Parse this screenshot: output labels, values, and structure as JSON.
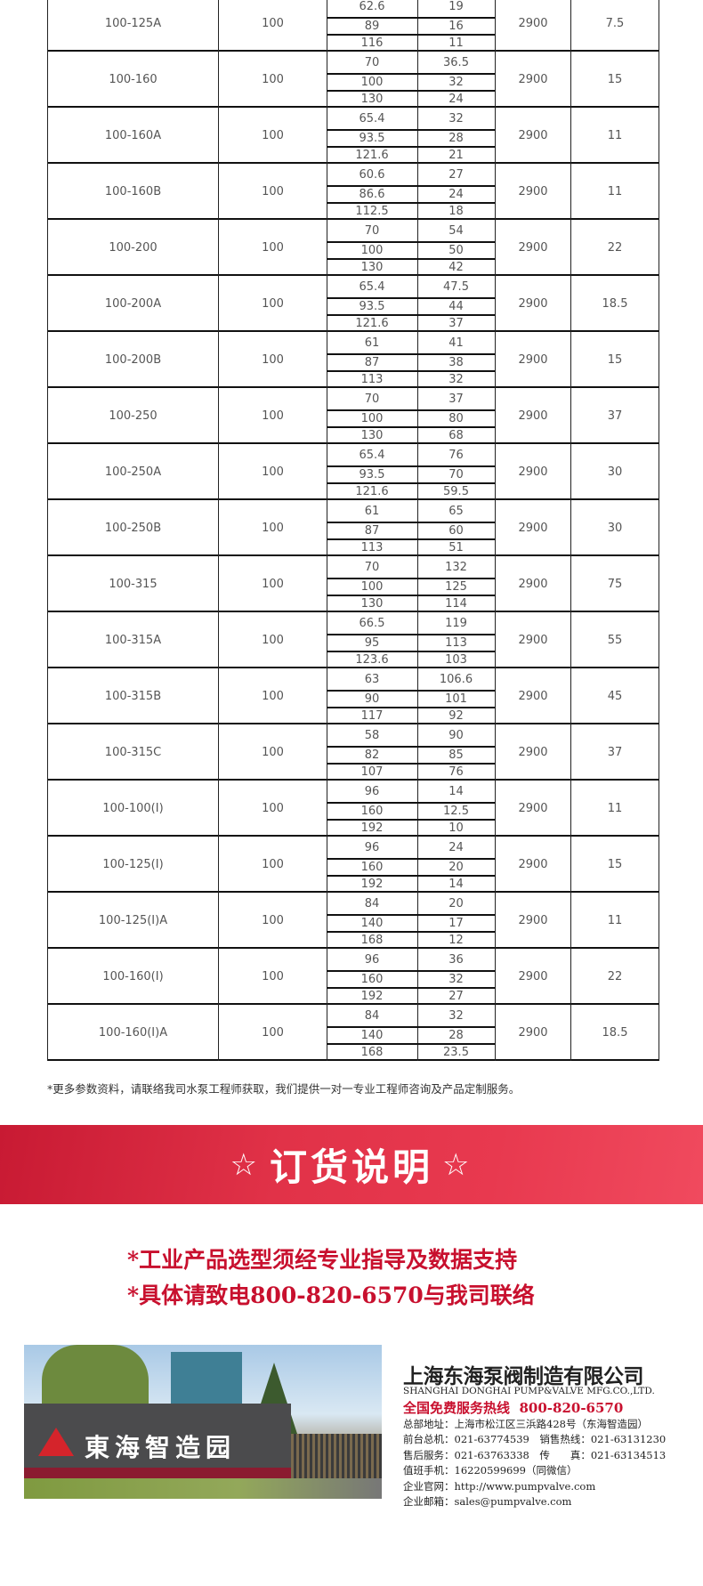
{
  "table": {
    "rows": [
      {
        "model": "100-125A",
        "inlet": "100",
        "flow": [
          "62.6",
          "89",
          "116"
        ],
        "head": [
          "19",
          "16",
          "11"
        ],
        "speed": "2900",
        "power": "7.5"
      },
      {
        "model": "100-160",
        "inlet": "100",
        "flow": [
          "70",
          "100",
          "130"
        ],
        "head": [
          "36.5",
          "32",
          "24"
        ],
        "speed": "2900",
        "power": "15"
      },
      {
        "model": "100-160A",
        "inlet": "100",
        "flow": [
          "65.4",
          "93.5",
          "121.6"
        ],
        "head": [
          "32",
          "28",
          "21"
        ],
        "speed": "2900",
        "power": "11"
      },
      {
        "model": "100-160B",
        "inlet": "100",
        "flow": [
          "60.6",
          "86.6",
          "112.5"
        ],
        "head": [
          "27",
          "24",
          "18"
        ],
        "speed": "2900",
        "power": "11"
      },
      {
        "model": "100-200",
        "inlet": "100",
        "flow": [
          "70",
          "100",
          "130"
        ],
        "head": [
          "54",
          "50",
          "42"
        ],
        "speed": "2900",
        "power": "22"
      },
      {
        "model": "100-200A",
        "inlet": "100",
        "flow": [
          "65.4",
          "93.5",
          "121.6"
        ],
        "head": [
          "47.5",
          "44",
          "37"
        ],
        "speed": "2900",
        "power": "18.5"
      },
      {
        "model": "100-200B",
        "inlet": "100",
        "flow": [
          "61",
          "87",
          "113"
        ],
        "head": [
          "41",
          "38",
          "32"
        ],
        "speed": "2900",
        "power": "15"
      },
      {
        "model": "100-250",
        "inlet": "100",
        "flow": [
          "70",
          "100",
          "130"
        ],
        "head": [
          "37",
          "80",
          "68"
        ],
        "speed": "2900",
        "power": "37"
      },
      {
        "model": "100-250A",
        "inlet": "100",
        "flow": [
          "65.4",
          "93.5",
          "121.6"
        ],
        "head": [
          "76",
          "70",
          "59.5"
        ],
        "speed": "2900",
        "power": "30"
      },
      {
        "model": "100-250B",
        "inlet": "100",
        "flow": [
          "61",
          "87",
          "113"
        ],
        "head": [
          "65",
          "60",
          "51"
        ],
        "speed": "2900",
        "power": "30"
      },
      {
        "model": "100-315",
        "inlet": "100",
        "flow": [
          "70",
          "100",
          "130"
        ],
        "head": [
          "132",
          "125",
          "114"
        ],
        "speed": "2900",
        "power": "75"
      },
      {
        "model": "100-315A",
        "inlet": "100",
        "flow": [
          "66.5",
          "95",
          "123.6"
        ],
        "head": [
          "119",
          "113",
          "103"
        ],
        "speed": "2900",
        "power": "55"
      },
      {
        "model": "100-315B",
        "inlet": "100",
        "flow": [
          "63",
          "90",
          "117"
        ],
        "head": [
          "106.6",
          "101",
          "92"
        ],
        "speed": "2900",
        "power": "45"
      },
      {
        "model": "100-315C",
        "inlet": "100",
        "flow": [
          "58",
          "82",
          "107"
        ],
        "head": [
          "90",
          "85",
          "76"
        ],
        "speed": "2900",
        "power": "37"
      },
      {
        "model": "100-100(I)",
        "inlet": "100",
        "flow": [
          "96",
          "160",
          "192"
        ],
        "head": [
          "14",
          "12.5",
          "10"
        ],
        "speed": "2900",
        "power": "11"
      },
      {
        "model": "100-125(I)",
        "inlet": "100",
        "flow": [
          "96",
          "160",
          "192"
        ],
        "head": [
          "24",
          "20",
          "14"
        ],
        "speed": "2900",
        "power": "15"
      },
      {
        "model": "100-125(I)A",
        "inlet": "100",
        "flow": [
          "84",
          "140",
          "168"
        ],
        "head": [
          "20",
          "17",
          "12"
        ],
        "speed": "2900",
        "power": "11"
      },
      {
        "model": "100-160(I)",
        "inlet": "100",
        "flow": [
          "96",
          "160",
          "192"
        ],
        "head": [
          "36",
          "32",
          "27"
        ],
        "speed": "2900",
        "power": "22"
      },
      {
        "model": "100-160(I)A",
        "inlet": "100",
        "flow": [
          "84",
          "140",
          "168"
        ],
        "head": [
          "32",
          "28",
          "23.5"
        ],
        "speed": "2900",
        "power": "18.5"
      }
    ]
  },
  "note": "*更多参数资料，请联络我司水泵工程师获取，我们提供一对一专业工程师咨询及产品定制服务。",
  "banner": {
    "star": "☆",
    "title": "订货说明",
    "color": "#e13248"
  },
  "order_lines": [
    "*工业产品选型须经专业指导及数据支持",
    "*具体请致电800-820-6570与我司联络"
  ],
  "photo": {
    "sign_text": "東海智造园",
    "logo": "东"
  },
  "company": {
    "name_cn": "上海东海泵阀制造有限公司",
    "name_en": "SHANGHAI DONGHAI PUMP&VALVE MFG.CO.,LTD.",
    "hotline_label": "全国免费服务热线",
    "hotline": "800-820-6570",
    "lines": [
      "总部地址：上海市松江区三浜路428号（东海智造园）",
      "前台总机：021-63774539　销售热线：021-63131230",
      "售后服务：021-63763338　传　　真：021-63134513",
      "值班手机：16220599699（同微信）",
      "企业官网：http://www.pumpvalve.com",
      "企业邮箱：sales@pumpvalve.com"
    ]
  }
}
